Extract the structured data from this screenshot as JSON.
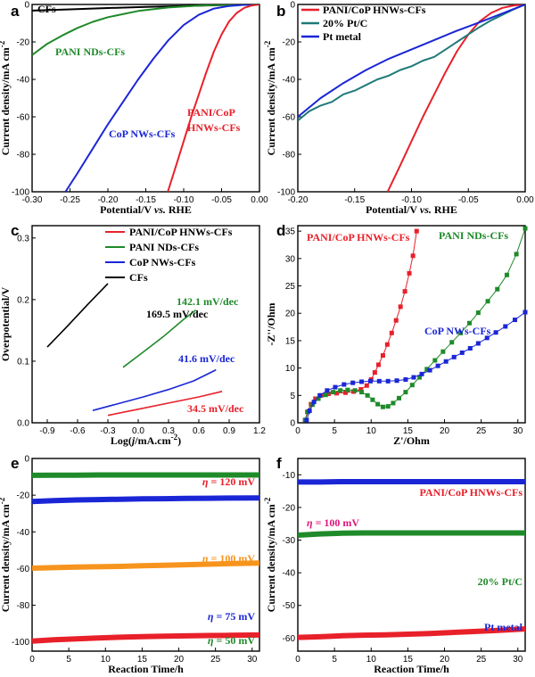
{
  "figure": {
    "colors": {
      "red": "#e8202a",
      "green": "#1f8a2a",
      "blue": "#1a26d6",
      "black": "#000000",
      "teal": "#1f7a78",
      "orange": "#f7941d",
      "magenta": "#e0147a"
    }
  },
  "chart_data": [
    {
      "panel": "a",
      "type": "line",
      "xlabel": "Potential/V vs. RHE",
      "ylabel": "Current density/mA cm-2",
      "xlim": [
        -0.3,
        0.0
      ],
      "ylim": [
        -100,
        0
      ],
      "xticks": [
        "-0.30",
        "-0.25",
        "-0.20",
        "-0.15",
        "-0.10",
        "-0.05",
        "0.00"
      ],
      "yticks": [
        "0",
        "-20",
        "-40",
        "-60",
        "-80",
        "-100"
      ],
      "series": [
        {
          "name": "CFs",
          "color": "black",
          "x": [
            -0.3,
            -0.25,
            -0.2,
            -0.15,
            -0.1,
            -0.05,
            0.0
          ],
          "y": [
            -3.3,
            -2.6,
            -1.9,
            -1.3,
            -0.8,
            -0.4,
            0
          ]
        },
        {
          "name": "PANI NDs-CFs",
          "color": "green",
          "x": [
            -0.3,
            -0.28,
            -0.26,
            -0.24,
            -0.22,
            -0.2,
            -0.16,
            -0.12,
            -0.08,
            -0.04,
            0.0
          ],
          "y": [
            -27,
            -21,
            -16.5,
            -12.5,
            -9.3,
            -6.8,
            -3.5,
            -1.6,
            -0.6,
            -0.15,
            0
          ]
        },
        {
          "name": "CoP NWs-CFs",
          "color": "blue",
          "x": [
            -0.256,
            -0.24,
            -0.22,
            -0.2,
            -0.18,
            -0.16,
            -0.14,
            -0.12,
            -0.1,
            -0.08,
            -0.06,
            -0.04,
            -0.02,
            0.0
          ],
          "y": [
            -100,
            -90,
            -77,
            -64,
            -52,
            -40,
            -29,
            -19,
            -11,
            -5.5,
            -2.2,
            -0.8,
            -0.2,
            0
          ]
        },
        {
          "name": "PANI/CoP HNWs-CFs",
          "color": "red",
          "x": [
            -0.121,
            -0.11,
            -0.1,
            -0.09,
            -0.08,
            -0.07,
            -0.06,
            -0.05,
            -0.04,
            -0.03,
            -0.02,
            -0.01,
            0.0
          ],
          "y": [
            -100,
            -86,
            -73,
            -60,
            -48,
            -36,
            -25,
            -16,
            -9,
            -4.5,
            -1.8,
            -0.5,
            0
          ]
        }
      ],
      "annotations": [
        {
          "text": "CFs",
          "color": "black"
        },
        {
          "text": "PANI NDs-CFs",
          "color": "green"
        },
        {
          "text": "CoP NWs-CFs",
          "color": "blue"
        },
        {
          "text": "PANI/CoP",
          "color": "red"
        },
        {
          "text": "HNWs-CFs",
          "color": "red"
        }
      ]
    },
    {
      "panel": "b",
      "type": "line",
      "xlabel": "Potential/V vs. RHE",
      "ylabel": "Current density/mA cm-2",
      "xlim": [
        -0.2,
        0.0
      ],
      "ylim": [
        -100,
        0
      ],
      "xticks": [
        "-0.20",
        "-0.15",
        "-0.10",
        "-0.05",
        "0.00"
      ],
      "yticks": [
        "0",
        "-20",
        "-40",
        "-60",
        "-80",
        "-100"
      ],
      "legend": [
        "PANI/CoP HNWs-CFs",
        "20% Pt/C",
        "Pt metal"
      ],
      "series": [
        {
          "name": "PANI/CoP HNWs-CFs",
          "color": "red",
          "x": [
            -0.121,
            -0.11,
            -0.1,
            -0.09,
            -0.08,
            -0.07,
            -0.06,
            -0.05,
            -0.04,
            -0.03,
            -0.02,
            -0.01,
            0.0
          ],
          "y": [
            -100,
            -86,
            -73,
            -60,
            -48,
            -36,
            -25,
            -16,
            -9,
            -4.5,
            -1.8,
            -0.5,
            0
          ]
        },
        {
          "name": "20% Pt/C",
          "color": "teal",
          "x": [
            -0.2,
            -0.19,
            -0.18,
            -0.17,
            -0.16,
            -0.15,
            -0.14,
            -0.13,
            -0.12,
            -0.11,
            -0.1,
            -0.09,
            -0.08,
            -0.07,
            -0.06,
            -0.05,
            -0.04,
            -0.03,
            -0.02,
            -0.01,
            0.0
          ],
          "y": [
            -62,
            -57,
            -54,
            -52,
            -48,
            -46,
            -43,
            -40,
            -38,
            -35,
            -33,
            -30,
            -28,
            -24,
            -20,
            -16,
            -12,
            -8.5,
            -5.5,
            -2.5,
            0
          ]
        },
        {
          "name": "Pt metal",
          "color": "blue",
          "x": [
            -0.2,
            -0.18,
            -0.16,
            -0.14,
            -0.12,
            -0.1,
            -0.08,
            -0.06,
            -0.04,
            -0.02,
            0.0
          ],
          "y": [
            -60,
            -50,
            -42,
            -35,
            -29,
            -24,
            -19,
            -14,
            -9.5,
            -4.8,
            0
          ]
        }
      ]
    },
    {
      "panel": "c",
      "type": "line",
      "xlabel": "Log(j/mA.cm-2)",
      "ylabel": "Overpotential/V",
      "xlim": [
        -1.05,
        1.2
      ],
      "ylim": [
        0,
        0.32
      ],
      "xticks": [
        "-0.9",
        "-0.6",
        "-0.3",
        "0.0",
        "0.3",
        "0.6",
        "0.9",
        "1.2"
      ],
      "yticks": [
        "0.0",
        "0.1",
        "0.2",
        "0.3"
      ],
      "legend": [
        "PANI/CoP HNWs-CFs",
        "PANI NDs-CFs",
        "CoP NWs-CFs",
        "CFs"
      ],
      "series": [
        {
          "name": "PANI/CoP HNWs-CFs",
          "color": "red",
          "x": [
            -0.3,
            0.0,
            0.3,
            0.6,
            0.83
          ],
          "y": [
            0.012,
            0.022,
            0.032,
            0.042,
            0.051
          ]
        },
        {
          "name": "PANI NDs-CFs",
          "color": "green",
          "x": [
            -0.15,
            0.05,
            0.25,
            0.45,
            0.57
          ],
          "y": [
            0.09,
            0.115,
            0.14,
            0.168,
            0.183
          ]
        },
        {
          "name": "CoP NWs-CFs",
          "color": "blue",
          "x": [
            -0.45,
            -0.2,
            0.05,
            0.3,
            0.55,
            0.77
          ],
          "y": [
            0.02,
            0.031,
            0.042,
            0.054,
            0.068,
            0.086
          ]
        },
        {
          "name": "CFs",
          "color": "black",
          "x": [
            -0.9,
            -0.7,
            -0.5,
            -0.3
          ],
          "y": [
            0.123,
            0.157,
            0.192,
            0.226
          ]
        }
      ],
      "annotations": [
        {
          "text": "169.5 mV/dec",
          "color": "black"
        },
        {
          "text": "142.1  mV/dec",
          "color": "green"
        },
        {
          "text": "41.6 mV/dec",
          "color": "blue"
        },
        {
          "text": "34.5 mV/dec",
          "color": "red"
        }
      ]
    },
    {
      "panel": "d",
      "type": "scatter",
      "xlabel": "Z'/Ohm",
      "ylabel": "-Z''/Ohm",
      "xlim": [
        0,
        31
      ],
      "ylim": [
        0,
        36
      ],
      "xticks": [
        "0",
        "5",
        "10",
        "15",
        "20",
        "25",
        "30"
      ],
      "yticks": [
        "0",
        "5",
        "10",
        "15",
        "20",
        "25",
        "30",
        "35"
      ],
      "series": [
        {
          "name": "PANI/CoP HNWs-CFs",
          "color": "red",
          "x": [
            1.0,
            1.3,
            1.8,
            2.4,
            3.2,
            4.2,
            5.3,
            6.5,
            7.6,
            8.6,
            9.4,
            10.0,
            10.5,
            11.0,
            11.6,
            12.2,
            12.8,
            13.4,
            14.0,
            14.6,
            15.2,
            15.7,
            16.2
          ],
          "y": [
            0.5,
            2.0,
            3.4,
            4.4,
            5.0,
            5.3,
            5.4,
            5.5,
            5.7,
            6.1,
            6.8,
            7.9,
            9.2,
            10.6,
            12.3,
            14.3,
            16.4,
            18.7,
            21.2,
            24.0,
            27.3,
            30.5,
            35
          ]
        },
        {
          "name": "PANI NDs-CFs",
          "color": "green",
          "x": [
            1.0,
            1.4,
            2.0,
            2.8,
            3.8,
            4.8,
            5.8,
            6.8,
            7.8,
            8.7,
            9.5,
            10.2,
            10.9,
            11.6,
            12.3,
            13.0,
            13.8,
            14.7,
            15.6,
            16.6,
            17.6,
            18.7,
            19.8,
            21.0,
            22.2,
            23.4,
            24.6,
            25.9,
            27.2,
            28.5,
            29.8,
            31.0
          ],
          "y": [
            0.5,
            2.0,
            3.3,
            4.4,
            5.1,
            5.6,
            5.9,
            6.0,
            5.9,
            5.6,
            5.0,
            4.2,
            3.4,
            2.9,
            3.0,
            3.6,
            4.5,
            5.6,
            6.9,
            8.3,
            9.8,
            11.4,
            13.0,
            14.7,
            16.4,
            18.2,
            20.1,
            22.2,
            24.4,
            27.0,
            30.8,
            35.5
          ]
        },
        {
          "name": "CoP NWs-CFs",
          "color": "blue",
          "x": [
            1.2,
            1.6,
            2.2,
            3.0,
            4.0,
            5.1,
            6.3,
            7.5,
            8.7,
            9.9,
            11.1,
            12.3,
            13.5,
            14.7,
            15.8,
            16.9,
            18.0,
            19.1,
            20.2,
            21.3,
            22.4,
            23.5,
            24.6,
            25.8,
            27.0,
            28.3,
            29.6,
            31.0
          ],
          "y": [
            0.5,
            2.2,
            3.8,
            5.0,
            5.9,
            6.5,
            7.0,
            7.3,
            7.5,
            7.6,
            7.6,
            7.6,
            7.7,
            7.9,
            8.3,
            8.9,
            9.6,
            10.4,
            11.2,
            12.0,
            12.8,
            13.6,
            14.5,
            15.5,
            16.5,
            17.6,
            18.8,
            20.2
          ]
        }
      ],
      "labels": [
        {
          "text": "PANI/CoP HNWs-CFs",
          "color": "red"
        },
        {
          "text": "PANI NDs-CFs",
          "color": "green"
        },
        {
          "text": "CoP NWs-CFs",
          "color": "blue"
        }
      ]
    },
    {
      "panel": "e",
      "type": "line",
      "xlabel": "Reaction Time/h",
      "ylabel": "Current density/mA cm-2",
      "xlim": [
        0,
        31
      ],
      "ylim": [
        -105,
        0
      ],
      "xticks": [
        "0",
        "5",
        "10",
        "15",
        "20",
        "25",
        "30"
      ],
      "yticks": [
        "0",
        "-20",
        "-40",
        "-60",
        "-80",
        "-100"
      ],
      "series": [
        {
          "name": "η = 120 mV",
          "color": "red",
          "x": [
            0,
            3,
            6,
            9,
            12,
            15,
            18,
            21,
            24,
            27,
            31
          ],
          "y": [
            -99.5,
            -98.8,
            -98.3,
            -97.8,
            -97.4,
            -97.1,
            -96.9,
            -96.7,
            -96.5,
            -96.4,
            -96.2
          ]
        },
        {
          "name": "η = 100 mV",
          "color": "orange",
          "x": [
            0,
            3,
            6,
            9,
            12,
            15,
            18,
            21,
            24,
            27,
            31
          ],
          "y": [
            -59.8,
            -59.5,
            -59.2,
            -59.0,
            -58.8,
            -58.5,
            -58.2,
            -57.9,
            -57.6,
            -57.3,
            -57.0
          ]
        },
        {
          "name": "η = 75 mV",
          "color": "blue",
          "x": [
            0,
            3,
            6,
            9,
            12,
            15,
            18,
            21,
            24,
            27,
            31
          ],
          "y": [
            -23.5,
            -23.0,
            -22.6,
            -22.4,
            -22.2,
            -22.0,
            -21.9,
            -21.8,
            -21.7,
            -21.6,
            -21.5
          ]
        },
        {
          "name": "η = 50 mV",
          "color": "green",
          "x": [
            0,
            3,
            6,
            9,
            12,
            15,
            18,
            21,
            24,
            27,
            31
          ],
          "y": [
            -9.2,
            -9.1,
            -9.1,
            -9.0,
            -9.0,
            -9.0,
            -9.0,
            -9.0,
            -9.0,
            -9.0,
            -9.0
          ]
        }
      ],
      "labels": [
        {
          "eta": "η",
          "rest": " = 120 mV",
          "color": "red"
        },
        {
          "eta": "η",
          "rest": " = 100 mV",
          "color": "orange"
        },
        {
          "eta": "η",
          "rest": " = 75 mV",
          "color": "blue"
        },
        {
          "eta": "η",
          "rest": " = 50 mV",
          "color": "green"
        }
      ]
    },
    {
      "panel": "f",
      "type": "line",
      "xlabel": "Reaction Time/h",
      "ylabel": "Current density/mA cm-2",
      "xlim": [
        0,
        31
      ],
      "ylim": [
        -64,
        -5
      ],
      "xticks": [
        "0",
        "5",
        "10",
        "15",
        "20",
        "25",
        "30"
      ],
      "yticks": [
        "-10",
        "-20",
        "-30",
        "-40",
        "-50",
        "-60"
      ],
      "series": [
        {
          "name": "PANI/CoP HNWs-CFs",
          "color": "red",
          "x": [
            0,
            3,
            6,
            9,
            12,
            15,
            18,
            21,
            24,
            27,
            31
          ],
          "y": [
            -59.8,
            -59.6,
            -59.3,
            -59.1,
            -59.0,
            -58.8,
            -58.6,
            -58.3,
            -58.0,
            -57.7,
            -57.2
          ]
        },
        {
          "name": "20% Pt/C",
          "color": "green",
          "x": [
            0,
            3,
            6,
            9,
            12,
            15,
            18,
            21,
            24,
            27,
            31
          ],
          "y": [
            -28.5,
            -28.1,
            -27.9,
            -27.8,
            -27.8,
            -27.8,
            -27.8,
            -27.8,
            -27.8,
            -27.8,
            -27.8
          ]
        },
        {
          "name": "Pt metal",
          "color": "blue",
          "x": [
            0,
            3,
            6,
            9,
            12,
            15,
            18,
            21,
            24,
            27,
            31
          ],
          "y": [
            -12.2,
            -12.2,
            -12.1,
            -12.1,
            -12.1,
            -12.1,
            -12.1,
            -12.1,
            -12.1,
            -12.1,
            -12.1
          ]
        }
      ],
      "labels": [
        {
          "text": "PANI/CoP HNWs-CFs",
          "color": "red"
        },
        {
          "eta": "η",
          "rest": " = 100 mV",
          "color": "magenta"
        },
        {
          "text": "20% Pt/C",
          "color": "green"
        },
        {
          "text": "Pt metal",
          "color": "blue"
        }
      ]
    }
  ]
}
